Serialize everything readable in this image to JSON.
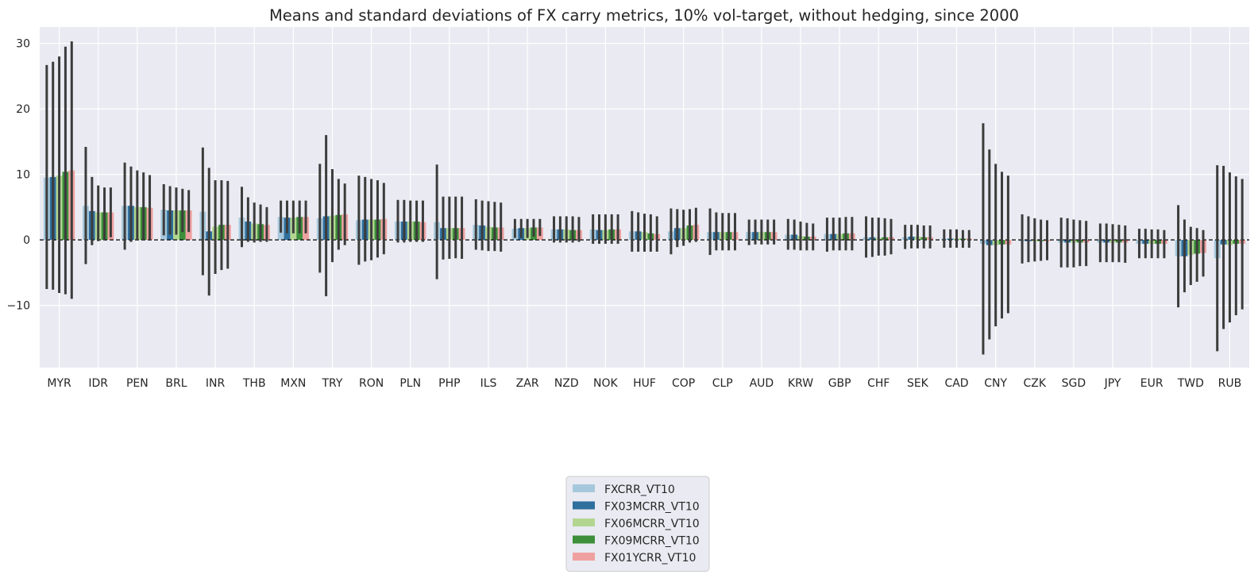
{
  "chart_data": {
    "type": "bar",
    "title": "Means and standard deviations of FX carry metrics, 10% vol-target, without hedging, since 2000",
    "xlabel": "",
    "ylabel": "",
    "ylim": [
      -19.5,
      32.5
    ],
    "yticks": [
      -10,
      0,
      10,
      20,
      30
    ],
    "ytick_labels": [
      "−10",
      "0",
      "10",
      "20",
      "30"
    ],
    "grid": true,
    "zero_line": "dashed",
    "error_bars": "mean ± standard deviation",
    "legend_position": "bottom-center",
    "categories": [
      "MYR",
      "IDR",
      "PEN",
      "BRL",
      "INR",
      "THB",
      "MXN",
      "TRY",
      "RON",
      "PLN",
      "PHP",
      "ILS",
      "ZAR",
      "NZD",
      "NOK",
      "HUF",
      "COP",
      "CLP",
      "AUD",
      "KRW",
      "GBP",
      "CHF",
      "SEK",
      "CAD",
      "CNY",
      "CZK",
      "SGD",
      "JPY",
      "EUR",
      "TWD",
      "RUB"
    ],
    "series": [
      {
        "name": "FXCRR_VT10",
        "color": "#a6c8dc",
        "values": [
          9.5,
          5.2,
          5.2,
          4.6,
          4.3,
          3.4,
          3.5,
          3.3,
          3.0,
          2.8,
          2.7,
          2.3,
          1.7,
          1.6,
          1.6,
          1.3,
          1.3,
          1.2,
          1.2,
          0.8,
          0.9,
          0.4,
          0.4,
          0.2,
          -0.6,
          -0.2,
          -0.4,
          -0.4,
          -0.6,
          -2.5,
          -2.8
        ],
        "low": [
          -7.5,
          -3.7,
          -1.5,
          0.7,
          -5.4,
          -1.1,
          1.1,
          -5.0,
          -3.8,
          -0.4,
          -6.0,
          -1.5,
          0.3,
          -0.4,
          -0.6,
          -1.8,
          -2.2,
          -2.3,
          -0.8,
          -1.5,
          -1.8,
          -2.7,
          -1.4,
          -1.2,
          -17.5,
          -3.6,
          -4.2,
          -3.4,
          -2.8,
          -10.3,
          -17.0
        ],
        "high": [
          26.7,
          14.2,
          11.8,
          8.5,
          14.1,
          8.1,
          6.0,
          11.6,
          9.8,
          6.1,
          11.5,
          6.2,
          3.2,
          3.6,
          3.9,
          4.4,
          4.8,
          4.8,
          3.1,
          3.2,
          3.4,
          3.6,
          2.3,
          1.6,
          17.8,
          3.9,
          3.4,
          2.5,
          1.7,
          5.3,
          11.4
        ]
      },
      {
        "name": "FX03MCRR_VT10",
        "color": "#2e6f9e",
        "values": [
          9.6,
          4.4,
          5.2,
          4.5,
          1.3,
          2.8,
          3.4,
          3.6,
          3.1,
          2.8,
          1.8,
          2.2,
          1.8,
          1.6,
          1.5,
          1.3,
          1.8,
          1.2,
          1.2,
          0.8,
          0.9,
          0.4,
          0.5,
          0.2,
          -0.8,
          -0.2,
          -0.4,
          -0.4,
          -0.6,
          -2.5,
          -0.7
        ],
        "low": [
          -7.6,
          -0.8,
          -0.3,
          0.8,
          -8.5,
          -0.3,
          1.0,
          -8.6,
          -3.3,
          -0.4,
          -3.0,
          -1.6,
          0.3,
          -0.4,
          -0.6,
          -1.8,
          -1.1,
          -1.6,
          -0.7,
          -1.5,
          -1.6,
          -2.6,
          -1.3,
          -1.2,
          -15.2,
          -3.4,
          -4.2,
          -3.4,
          -2.8,
          -8.0,
          -13.6
        ],
        "high": [
          27.2,
          9.6,
          11.2,
          8.2,
          11.0,
          6.5,
          6.0,
          16.0,
          9.6,
          6.1,
          6.6,
          6.0,
          3.2,
          3.6,
          3.9,
          4.2,
          4.7,
          4.2,
          3.1,
          3.1,
          3.4,
          3.4,
          2.3,
          1.6,
          13.8,
          3.6,
          3.3,
          2.5,
          1.7,
          3.1,
          11.3
        ]
      },
      {
        "name": "FX06MCRR_VT10",
        "color": "#b2d690",
        "values": [
          9.8,
          4.2,
          5.0,
          4.5,
          2.0,
          2.5,
          3.4,
          3.7,
          3.1,
          2.8,
          1.8,
          2.0,
          1.8,
          1.6,
          1.5,
          1.2,
          1.8,
          1.2,
          1.2,
          0.6,
          0.9,
          0.3,
          0.5,
          0.2,
          -0.8,
          -0.2,
          -0.4,
          -0.4,
          -0.6,
          -2.3,
          -0.8
        ],
        "low": [
          -8.1,
          -0.2,
          0.0,
          0.8,
          -5.2,
          -0.4,
          1.0,
          -3.4,
          -3.1,
          -0.3,
          -2.9,
          -1.7,
          0.3,
          -0.4,
          -0.6,
          -1.8,
          -0.9,
          -1.6,
          -0.7,
          -1.6,
          -1.6,
          -2.4,
          -1.3,
          -1.2,
          -13.2,
          -3.3,
          -4.2,
          -3.4,
          -2.8,
          -6.9,
          -12.6
        ],
        "high": [
          28.0,
          8.3,
          10.6,
          8.0,
          9.1,
          5.7,
          6.0,
          10.8,
          9.3,
          6.0,
          6.6,
          5.9,
          3.2,
          3.6,
          3.9,
          4.0,
          4.6,
          4.1,
          3.1,
          2.8,
          3.4,
          3.4,
          2.3,
          1.6,
          11.6,
          3.3,
          3.1,
          2.4,
          1.6,
          2.0,
          10.3
        ]
      },
      {
        "name": "FX09MCRR_VT10",
        "color": "#3d8f3a",
        "values": [
          10.4,
          4.2,
          5.0,
          4.5,
          2.3,
          2.4,
          3.5,
          3.8,
          3.1,
          2.8,
          1.8,
          1.9,
          1.9,
          1.5,
          1.6,
          1.0,
          2.2,
          1.2,
          1.2,
          0.5,
          1.0,
          0.4,
          0.4,
          0.2,
          -0.7,
          -0.2,
          -0.4,
          -0.4,
          -0.6,
          -2.1,
          -0.6
        ],
        "low": [
          -8.3,
          0.0,
          0.0,
          1.2,
          -4.6,
          -0.3,
          1.0,
          -1.5,
          -2.7,
          -0.3,
          -2.8,
          -1.7,
          0.5,
          -0.4,
          -0.6,
          -1.8,
          -0.4,
          -1.6,
          -0.7,
          -1.6,
          -1.6,
          -2.4,
          -1.3,
          -1.2,
          -12.0,
          -3.2,
          -4.0,
          -3.4,
          -2.8,
          -6.4,
          -11.5
        ],
        "high": [
          29.5,
          8.0,
          10.3,
          7.8,
          9.1,
          5.4,
          6.0,
          9.3,
          9.1,
          6.0,
          6.6,
          5.8,
          3.2,
          3.6,
          3.9,
          3.9,
          4.7,
          4.1,
          3.1,
          2.6,
          3.5,
          3.3,
          2.2,
          1.5,
          10.4,
          3.1,
          3.0,
          2.3,
          1.6,
          1.8,
          9.7
        ]
      },
      {
        "name": "FX01YCRR_VT10",
        "color": "#efa1a1",
        "values": [
          10.6,
          4.2,
          4.9,
          4.5,
          2.3,
          2.3,
          3.5,
          3.9,
          3.2,
          2.7,
          1.8,
          1.9,
          1.9,
          1.5,
          1.6,
          0.9,
          2.3,
          1.2,
          1.2,
          0.5,
          1.0,
          0.4,
          0.4,
          0.2,
          -0.7,
          -0.2,
          -0.4,
          -0.4,
          -0.6,
          -2.0,
          -0.6
        ],
        "low": [
          -9.0,
          0.4,
          0.1,
          1.2,
          -4.4,
          -0.3,
          1.0,
          -0.8,
          -2.2,
          -0.3,
          -2.9,
          -1.8,
          0.6,
          -0.3,
          -0.6,
          -1.8,
          -0.3,
          -1.6,
          -0.7,
          -1.6,
          -1.6,
          -2.2,
          -1.3,
          -1.2,
          -11.2,
          -3.1,
          -4.0,
          -3.5,
          -2.8,
          -5.6,
          -10.6
        ],
        "high": [
          30.3,
          8.0,
          9.9,
          7.6,
          9.0,
          5.0,
          6.0,
          8.6,
          8.7,
          6.0,
          6.6,
          5.7,
          3.2,
          3.5,
          3.9,
          3.6,
          4.9,
          4.1,
          3.1,
          2.5,
          3.5,
          3.2,
          2.2,
          1.5,
          9.8,
          3.0,
          2.9,
          2.2,
          1.5,
          1.5,
          9.3
        ]
      }
    ]
  }
}
